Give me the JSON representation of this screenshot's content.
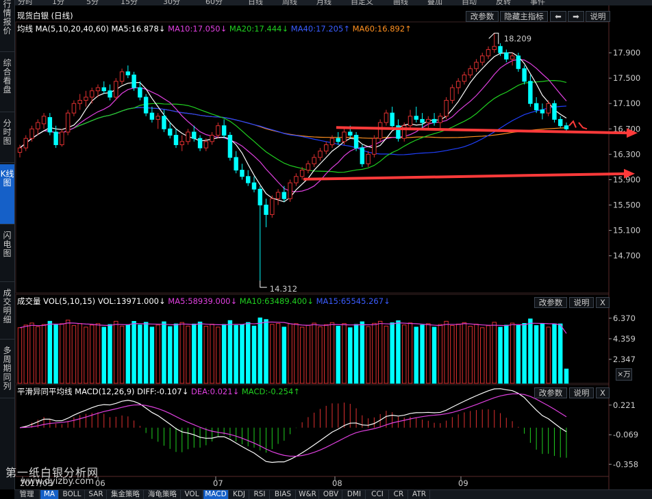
{
  "top_tabs": [
    "分时",
    "1分",
    "5分",
    "15分",
    "30分",
    "60分",
    "日线",
    "周线",
    "月线",
    "自定义",
    "画线",
    "叠加",
    "自动",
    "反转",
    "事件"
  ],
  "sidebar": [
    {
      "label": "行情报价",
      "active": false
    },
    {
      "label": "综合看盘",
      "active": false
    },
    {
      "label": "分时图",
      "active": false
    },
    {
      "label": "K线图",
      "active": true
    },
    {
      "label": "闪电图",
      "active": false
    },
    {
      "label": "成交明细",
      "active": false
    },
    {
      "label": "多周期同列",
      "active": false
    }
  ],
  "kline": {
    "title": "现货白银 (日线)",
    "btn_params": "改参数",
    "btn_hide": "隐藏主指标",
    "btn_left": "⬅",
    "btn_right": "➡",
    "btn_help": "说明",
    "ma_name": "均线",
    "ma_params": "MA(5,10,20,40,60)",
    "ma5": "MA5:16.878",
    "ma5_arrow": "↓",
    "ma10": "MA10:17.050",
    "ma10_arrow": "↓",
    "ma20": "MA20:17.444",
    "ma20_arrow": "↓",
    "ma40": "MA40:17.205",
    "ma40_arrow": "↑",
    "ma60": "MA60:16.892",
    "ma60_arrow": "↑",
    "high_label": "18.209",
    "low_label": "14.312",
    "yticks": [
      "17.900",
      "17.500",
      "17.100",
      "16.700",
      "16.300",
      "15.900",
      "15.500",
      "15.100",
      "14.700"
    ]
  },
  "volume": {
    "name": "成交量",
    "params": "VOL(5,10,15)",
    "vol": "VOL:13971.000",
    "vol_arrow": "↓",
    "ma5": "MA5:58939.000",
    "ma5_arrow": "↓",
    "ma10": "MA10:63489.400",
    "ma10_arrow": "↓",
    "ma15": "MA15:65545.267",
    "ma15_arrow": "↓",
    "btn_params": "改参数",
    "btn_help": "说明",
    "btn_close": "X",
    "yticks": [
      "6.370",
      "4.359",
      "2.347"
    ],
    "unit": "×万"
  },
  "macd": {
    "name": "平滑异同平均线",
    "params": "MACD(12,26,9)",
    "diff": "DIFF:-0.107",
    "diff_arrow": "↓",
    "dea": "DEA:0.021",
    "dea_arrow": "↓",
    "macd": "MACD:-0.254",
    "macd_arrow": "↑",
    "btn_params": "改参数",
    "btn_help": "说明",
    "btn_close": "X",
    "yticks": [
      "0.221",
      "-0.069",
      "-0.358"
    ]
  },
  "x_labels": [
    "2017/05",
    "06",
    "07",
    "08",
    "09"
  ],
  "bottom_tabs": [
    "管理",
    "MA",
    "BOLL",
    "SAR",
    "集金策略",
    "海龟策略",
    "VOL",
    "MACD",
    "KDJ",
    "RSI",
    "BIAS",
    "W&R",
    "OBV",
    "DMI",
    "CCI",
    "CR",
    "ATR"
  ],
  "bottom_active": [
    "MA",
    "MACD"
  ],
  "watermark": "第一纸白银分析网",
  "watermark_url": "www.dyizby.com",
  "colors": {
    "up": "#e03030",
    "down": "#00ffff",
    "ma5": "#ffffff",
    "ma10": "#e040e0",
    "ma20": "#20d020",
    "ma40": "#2040ff",
    "ma60": "#ff9020",
    "arrow": "#ff3a3a"
  },
  "chart_data": {
    "type": "candlestick",
    "symbol": "现货白银",
    "period": "日线",
    "y_range": [
      14.2,
      18.3
    ],
    "highest": 18.209,
    "lowest": 14.312,
    "candles": [
      [
        16.33,
        16.45,
        16.25,
        16.4
      ],
      [
        16.4,
        16.6,
        16.35,
        16.55
      ],
      [
        16.55,
        16.75,
        16.5,
        16.7
      ],
      [
        16.7,
        16.85,
        16.6,
        16.8
      ],
      [
        16.78,
        16.95,
        16.7,
        16.9
      ],
      [
        16.88,
        16.95,
        16.6,
        16.65
      ],
      [
        16.65,
        16.75,
        16.4,
        16.45
      ],
      [
        16.45,
        16.7,
        16.42,
        16.65
      ],
      [
        16.65,
        17.0,
        16.6,
        16.95
      ],
      [
        16.95,
        17.15,
        16.9,
        17.1
      ],
      [
        17.1,
        17.25,
        17.0,
        17.15
      ],
      [
        17.15,
        17.3,
        17.05,
        17.2
      ],
      [
        17.2,
        17.35,
        17.1,
        17.3
      ],
      [
        17.3,
        17.4,
        17.2,
        17.35
      ],
      [
        17.35,
        17.45,
        17.25,
        17.3
      ],
      [
        17.3,
        17.4,
        17.15,
        17.2
      ],
      [
        17.2,
        17.5,
        17.15,
        17.45
      ],
      [
        17.45,
        17.65,
        17.4,
        17.6
      ],
      [
        17.6,
        17.7,
        17.5,
        17.55
      ],
      [
        17.55,
        17.6,
        17.3,
        17.35
      ],
      [
        17.35,
        17.45,
        17.15,
        17.2
      ],
      [
        17.2,
        17.25,
        16.9,
        16.95
      ],
      [
        16.95,
        17.05,
        16.8,
        16.85
      ],
      [
        16.85,
        16.95,
        16.7,
        16.9
      ],
      [
        16.9,
        17.0,
        16.65,
        16.7
      ],
      [
        16.7,
        16.8,
        16.55,
        16.6
      ],
      [
        16.6,
        16.7,
        16.4,
        16.45
      ],
      [
        16.45,
        16.6,
        16.35,
        16.5
      ],
      [
        16.5,
        16.7,
        16.45,
        16.65
      ],
      [
        16.65,
        16.75,
        16.5,
        16.55
      ],
      [
        16.55,
        16.6,
        16.35,
        16.4
      ],
      [
        16.4,
        16.55,
        16.35,
        16.5
      ],
      [
        16.5,
        16.65,
        16.45,
        16.6
      ],
      [
        16.6,
        16.8,
        16.55,
        16.75
      ],
      [
        16.75,
        16.85,
        16.55,
        16.6
      ],
      [
        16.6,
        16.65,
        16.2,
        16.25
      ],
      [
        16.25,
        16.35,
        16.0,
        16.05
      ],
      [
        16.05,
        16.15,
        15.9,
        15.95
      ],
      [
        15.95,
        16.05,
        15.8,
        15.85
      ],
      [
        15.85,
        15.95,
        15.7,
        15.75
      ],
      [
        15.75,
        15.8,
        14.31,
        15.5
      ],
      [
        15.5,
        15.6,
        15.15,
        15.35
      ],
      [
        15.35,
        15.65,
        15.3,
        15.6
      ],
      [
        15.6,
        15.75,
        15.5,
        15.7
      ],
      [
        15.7,
        15.8,
        15.55,
        15.6
      ],
      [
        15.6,
        15.9,
        15.55,
        15.85
      ],
      [
        15.85,
        16.0,
        15.8,
        15.95
      ],
      [
        15.95,
        16.1,
        15.9,
        16.05
      ],
      [
        16.05,
        16.2,
        16.0,
        16.15
      ],
      [
        16.15,
        16.3,
        16.1,
        16.25
      ],
      [
        16.25,
        16.4,
        16.2,
        16.35
      ],
      [
        16.35,
        16.5,
        16.3,
        16.45
      ],
      [
        16.45,
        16.6,
        16.4,
        16.55
      ],
      [
        16.55,
        16.65,
        16.45,
        16.5
      ],
      [
        16.5,
        16.7,
        16.45,
        16.65
      ],
      [
        16.65,
        16.75,
        16.55,
        16.6
      ],
      [
        16.6,
        16.65,
        16.35,
        16.4
      ],
      [
        16.4,
        16.45,
        16.1,
        16.15
      ],
      [
        16.15,
        16.35,
        16.1,
        16.3
      ],
      [
        16.3,
        16.6,
        16.25,
        16.55
      ],
      [
        16.55,
        16.85,
        16.5,
        16.8
      ],
      [
        16.8,
        17.0,
        16.75,
        16.95
      ],
      [
        16.95,
        17.05,
        16.7,
        16.75
      ],
      [
        16.75,
        16.85,
        16.5,
        16.55
      ],
      [
        16.55,
        16.8,
        16.5,
        16.75
      ],
      [
        16.75,
        17.0,
        16.7,
        16.9
      ],
      [
        16.9,
        17.05,
        16.8,
        16.85
      ],
      [
        16.85,
        16.95,
        16.7,
        16.8
      ],
      [
        16.8,
        16.9,
        16.7,
        16.85
      ],
      [
        16.85,
        16.95,
        16.75,
        16.8
      ],
      [
        16.8,
        16.95,
        16.7,
        16.9
      ],
      [
        16.9,
        17.2,
        16.85,
        17.15
      ],
      [
        17.15,
        17.4,
        17.1,
        17.35
      ],
      [
        17.35,
        17.5,
        17.25,
        17.45
      ],
      [
        17.45,
        17.6,
        17.4,
        17.55
      ],
      [
        17.55,
        17.7,
        17.5,
        17.65
      ],
      [
        17.65,
        17.8,
        17.6,
        17.75
      ],
      [
        17.75,
        17.9,
        17.7,
        17.85
      ],
      [
        17.85,
        18.0,
        17.8,
        17.95
      ],
      [
        17.95,
        18.21,
        17.9,
        18.0
      ],
      [
        18.0,
        18.05,
        17.85,
        17.9
      ],
      [
        17.9,
        17.95,
        17.75,
        17.8
      ],
      [
        17.8,
        17.9,
        17.7,
        17.85
      ],
      [
        17.85,
        17.9,
        17.6,
        17.65
      ],
      [
        17.65,
        17.7,
        17.4,
        17.45
      ],
      [
        17.45,
        17.55,
        17.05,
        17.1
      ],
      [
        17.1,
        17.2,
        16.95,
        17.0
      ],
      [
        17.0,
        17.1,
        16.85,
        16.95
      ],
      [
        16.95,
        17.15,
        16.9,
        17.1
      ],
      [
        17.1,
        17.15,
        16.8,
        16.85
      ],
      [
        16.85,
        16.9,
        16.72,
        16.75
      ],
      [
        16.75,
        16.8,
        16.66,
        16.7
      ]
    ],
    "horizontal_levels": [
      16.7,
      15.95
    ],
    "volume_yticks": [
      6.37,
      4.359,
      2.347
    ],
    "macd_yticks": [
      0.221,
      -0.069,
      -0.358
    ],
    "last_values": {
      "ma5": 16.878,
      "ma10": 17.05,
      "ma20": 17.444,
      "ma40": 17.205,
      "ma60": 16.892,
      "vol": 13971,
      "vol_ma5": 58939,
      "vol_ma10": 63489.4,
      "vol_ma15": 65545.267,
      "diff": -0.107,
      "dea": 0.021,
      "macd": -0.254
    }
  }
}
